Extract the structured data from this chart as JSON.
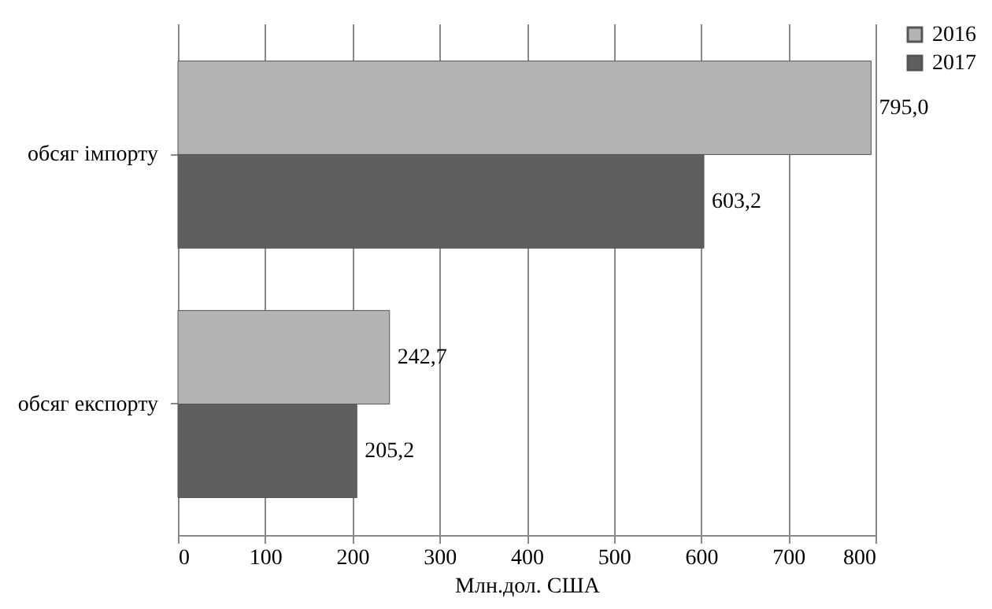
{
  "chart_data": {
    "type": "bar",
    "orientation": "horizontal",
    "categories": [
      "обсяг імпорту",
      "обсяг експорту"
    ],
    "series": [
      {
        "name": "2016",
        "color": "#b4b4b4",
        "values": [
          795.0,
          242.7
        ],
        "value_labels": [
          "795,0",
          "242,7"
        ]
      },
      {
        "name": "2017",
        "color": "#5f5f5f",
        "values": [
          603.2,
          205.2
        ],
        "value_labels": [
          "603,2",
          "205,2"
        ]
      }
    ],
    "xlabel": "Млн.дол. США",
    "xlim": [
      0,
      800
    ],
    "xticks": [
      0,
      100,
      200,
      300,
      400,
      500,
      600,
      700,
      800
    ],
    "grid": "x",
    "legend": "right"
  }
}
